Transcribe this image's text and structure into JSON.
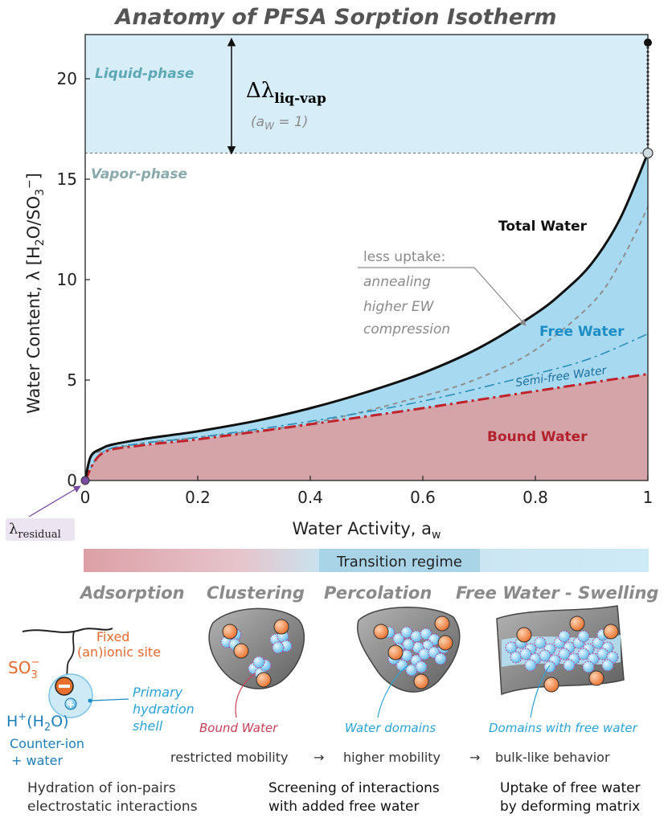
{
  "title": "Anatomy of PFSA Sorption Isotherm",
  "colors": {
    "liquid": "#d7eef9",
    "free": "#a7d9f0",
    "bound": "#d4a4a8",
    "bound_line": "#c0232c",
    "total_line": "#111111",
    "free_text": "#1d8dc6",
    "bound_text": "#b3212d",
    "phase_text": "#5ea8b6",
    "residual": "#7a4aa0"
  },
  "chart_data": {
    "type": "area",
    "xlabel": "Water Activity, a_w",
    "ylabel": "Water Content,  λ [H2O/SO3−]",
    "xlim": [
      0,
      1
    ],
    "ylim": [
      0,
      22.2
    ],
    "xticks": [
      0,
      0.2,
      0.4,
      0.6,
      0.8,
      1
    ],
    "xtick_labels": [
      "0",
      "0.2",
      "0.4",
      "0.6",
      "0.8",
      "1"
    ],
    "yticks": [
      0,
      5,
      10,
      15,
      20
    ],
    "ytick_labels": [
      "0",
      "5",
      "10",
      "15",
      "20"
    ],
    "grid": false,
    "series": [
      {
        "name": "Total Water",
        "style": "solid",
        "x": [
          0,
          0.01,
          0.03,
          0.05,
          0.1,
          0.15,
          0.2,
          0.3,
          0.4,
          0.5,
          0.6,
          0.7,
          0.8,
          0.85,
          0.9,
          0.95,
          1.0
        ],
        "y": [
          0,
          1.2,
          1.6,
          1.8,
          2.05,
          2.25,
          2.45,
          2.95,
          3.6,
          4.4,
          5.35,
          6.6,
          8.3,
          9.4,
          10.8,
          13.0,
          16.3
        ]
      },
      {
        "name": "Semi-free Water",
        "style": "dashdot",
        "x": [
          0,
          0.03,
          0.1,
          0.2,
          0.4,
          0.6,
          0.8,
          0.9,
          1.0
        ],
        "y": [
          0,
          1.4,
          1.85,
          2.15,
          2.95,
          3.95,
          5.3,
          6.1,
          7.3
        ]
      },
      {
        "name": "Bound Water",
        "style": "dashdot",
        "x": [
          0,
          0.03,
          0.1,
          0.2,
          0.4,
          0.6,
          0.8,
          1.0
        ],
        "y": [
          0,
          1.35,
          1.75,
          2.05,
          2.8,
          3.6,
          4.45,
          5.3
        ]
      },
      {
        "name": "less uptake",
        "style": "dashed",
        "x": [
          0.02,
          0.1,
          0.2,
          0.4,
          0.6,
          0.7,
          0.8,
          0.9,
          0.95,
          1.0
        ],
        "y": [
          1.4,
          1.85,
          2.15,
          2.85,
          4.2,
          5.1,
          6.5,
          8.8,
          10.8,
          13.6
        ]
      }
    ],
    "markers": [
      {
        "label": "λ_residual",
        "x": 0,
        "y": 0
      },
      {
        "x": 1,
        "y": 16.3
      },
      {
        "x": 1,
        "y": 21.8
      }
    ],
    "regions": {
      "vapor_top": 16.3,
      "liquid_top": 22.2
    },
    "annotations": {
      "liquid_phase": "Liquid-phase",
      "vapor_phase": "Vapor-phase",
      "delta_main": "Δλ",
      "delta_sub": "liq-vap",
      "delta_cond": "(a",
      "delta_cond_sub": "W",
      "delta_cond_end": " = 1)",
      "total_water": "Total Water",
      "free_water": "Free Water",
      "semi_free": "Semi-free Water",
      "bound_water": "Bound Water",
      "less_uptake_1": "less uptake:",
      "less_uptake_2": "annealing",
      "less_uptake_3": "higher EW",
      "less_uptake_4": "compression",
      "residual_main": "λ",
      "residual_sub": "residual"
    }
  },
  "transition": {
    "label": "Transition regime"
  },
  "stages": [
    "Adsorption",
    "Clustering",
    "Percolation",
    "Free Water - Swelling"
  ],
  "diagram": {
    "fixed_site_1": "Fixed",
    "fixed_site_2": "(an)ionic site",
    "so3": "SO",
    "so3_sub": "3",
    "so3_sup": "−",
    "hplus": "H",
    "hplus_sup": "+",
    "hplus_rest": "(H",
    "hplus_sub": "2",
    "hplus_end": "O)",
    "counter_1": "Counter-ion",
    "counter_2": "+ water",
    "primary_1": "Primary",
    "primary_2": "hydration",
    "primary_3": "shell",
    "bound_water": "Bound Water",
    "water_domains": "Water domains",
    "domains_free": "Domains with free water",
    "minus": "−",
    "plus": "+"
  },
  "mobility": [
    "restricted mobility",
    "→",
    "higher mobility",
    "→",
    "bulk-like behavior"
  ],
  "bottom": {
    "col1_1": "Hydration of ion-pairs",
    "col1_2": "electrostatic interactions",
    "col2_1": "Screening of interactions",
    "col2_2": "with added free water",
    "col3_1": "Uptake of free water",
    "col3_2": "by deforming matrix"
  }
}
